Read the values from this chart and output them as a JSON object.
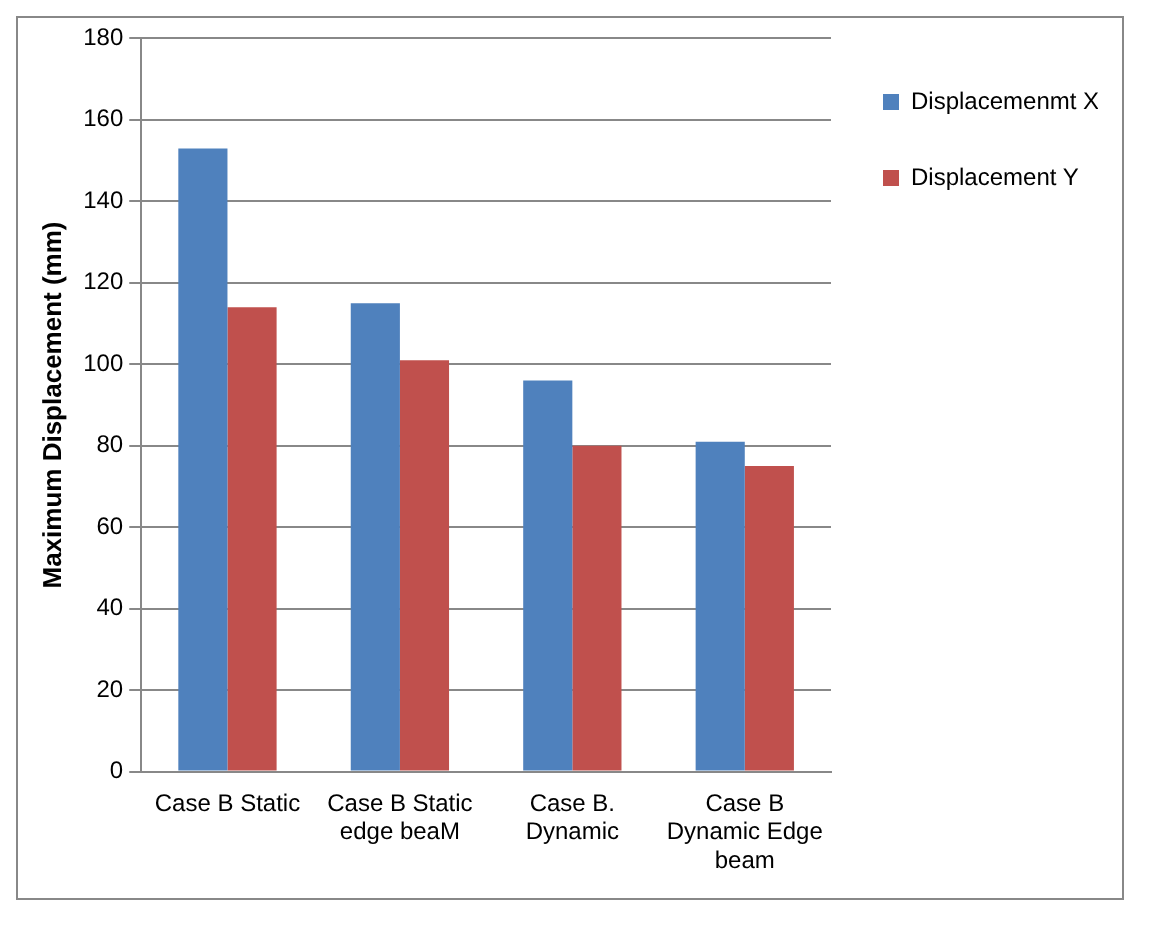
{
  "chart_data": {
    "type": "bar",
    "ylabel": "Maximum Displacement (mm)",
    "categories": [
      "Case B Static",
      "Case B Static edge beaM",
      "Case B. Dynamic",
      "Case B Dynamic Edge beam"
    ],
    "series": [
      {
        "name": "Displacemenmt X",
        "color": "#4f81bd",
        "values": [
          153,
          115,
          96,
          81
        ]
      },
      {
        "name": "Displacement Y",
        "color": "#c0504d",
        "values": [
          114,
          101,
          80,
          75
        ]
      }
    ],
    "ylim": [
      0,
      180
    ],
    "yticks": [
      0,
      20,
      40,
      60,
      80,
      100,
      120,
      140,
      160,
      180
    ],
    "grid": "y",
    "legend": "right"
  }
}
